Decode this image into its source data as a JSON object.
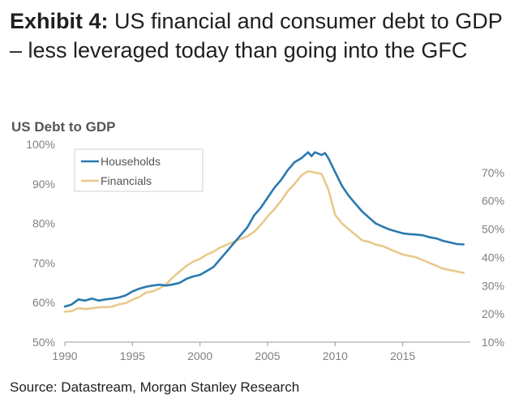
{
  "exhibit": {
    "label": "Exhibit 4:",
    "title": "US financial and consumer debt to GDP – less leveraged today than going into the GFC"
  },
  "source": "Source: Datastream, Morgan Stanley Research",
  "colors": {
    "households": "#2a79b0",
    "financials": "#e8c98a",
    "axis": "#9a9a9a",
    "text": "#808080"
  },
  "chart_data": {
    "type": "line",
    "title": "US Debt to GDP",
    "grid": false,
    "legend_position": "top-left",
    "x_ticks": [
      1990,
      1995,
      2000,
      2005,
      2010,
      2015
    ],
    "xlim": [
      1990,
      2020
    ],
    "left_axis": {
      "ticks": [
        "50%",
        "60%",
        "70%",
        "80%",
        "90%",
        "100%"
      ],
      "lim": [
        50,
        100
      ]
    },
    "right_axis": {
      "ticks": [
        "10%",
        "20%",
        "30%",
        "40%",
        "50%",
        "60%",
        "70%"
      ],
      "lim": [
        10,
        80
      ]
    },
    "series": [
      {
        "name": "Households",
        "axis": "left",
        "x": [
          1990,
          1990.5,
          1991,
          1991.5,
          1992,
          1992.5,
          1993,
          1993.5,
          1994,
          1994.5,
          1995,
          1995.5,
          1996,
          1996.5,
          1997,
          1997.5,
          1998,
          1998.5,
          1999,
          1999.5,
          2000,
          2000.5,
          2001,
          2001.5,
          2002,
          2002.5,
          2003,
          2003.5,
          2004,
          2004.5,
          2005,
          2005.5,
          2006,
          2006.5,
          2007,
          2007.5,
          2008,
          2008.25,
          2008.5,
          2009,
          2009.25,
          2009.5,
          2010,
          2010.5,
          2011,
          2011.5,
          2012,
          2012.5,
          2013,
          2013.5,
          2014,
          2014.5,
          2015,
          2015.5,
          2016,
          2016.5,
          2017,
          2017.5,
          2018,
          2018.5,
          2019,
          2019.5
        ],
        "values": [
          59.0,
          59.5,
          60.8,
          60.5,
          61.0,
          60.5,
          60.8,
          61.0,
          61.3,
          61.8,
          62.8,
          63.5,
          64.0,
          64.3,
          64.5,
          64.3,
          64.6,
          65.0,
          66.0,
          66.6,
          67.0,
          68.0,
          69.0,
          71.0,
          73.0,
          75.0,
          77.0,
          79.0,
          82.0,
          84.0,
          86.5,
          89.0,
          91.0,
          93.5,
          95.5,
          96.5,
          98.0,
          97.0,
          98.0,
          97.3,
          97.8,
          96.5,
          93.0,
          89.5,
          87.0,
          85.0,
          83.0,
          81.5,
          80.0,
          79.2,
          78.5,
          78.0,
          77.5,
          77.3,
          77.2,
          77.0,
          76.5,
          76.2,
          75.6,
          75.2,
          74.8,
          74.7
        ]
      },
      {
        "name": "Financials",
        "axis": "right",
        "x": [
          1990,
          1990.5,
          1991,
          1991.5,
          1992,
          1992.5,
          1993,
          1993.5,
          1994,
          1994.5,
          1995,
          1995.5,
          1996,
          1996.5,
          1997,
          1997.5,
          1998,
          1998.5,
          1999,
          1999.5,
          2000,
          2000.5,
          2001,
          2001.5,
          2002,
          2002.5,
          2003,
          2003.5,
          2004,
          2004.5,
          2005,
          2005.5,
          2006,
          2006.5,
          2007,
          2007.5,
          2008,
          2008.5,
          2009,
          2009.5,
          2010,
          2010.5,
          2011,
          2011.5,
          2012,
          2012.5,
          2013,
          2013.5,
          2014,
          2014.5,
          2015,
          2015.5,
          2016,
          2016.5,
          2017,
          2017.5,
          2018,
          2018.5,
          2019,
          2019.5
        ],
        "values": [
          20.8,
          21.0,
          22.0,
          21.7,
          22.0,
          22.3,
          22.4,
          22.5,
          23.4,
          23.8,
          25.0,
          26.0,
          27.5,
          28.0,
          29.0,
          30.5,
          33.0,
          35.0,
          37.0,
          38.5,
          39.5,
          41.0,
          42.0,
          43.5,
          44.5,
          45.5,
          46.5,
          47.5,
          49.0,
          51.5,
          54.5,
          57.0,
          60.0,
          63.5,
          66.0,
          69.0,
          70.5,
          70.0,
          69.5,
          64.0,
          55.0,
          52.0,
          50.0,
          48.0,
          46.0,
          45.5,
          44.5,
          44.0,
          43.0,
          42.0,
          41.0,
          40.5,
          40.0,
          39.0,
          38.0,
          37.0,
          36.0,
          35.5,
          35.0,
          34.5
        ]
      }
    ]
  }
}
